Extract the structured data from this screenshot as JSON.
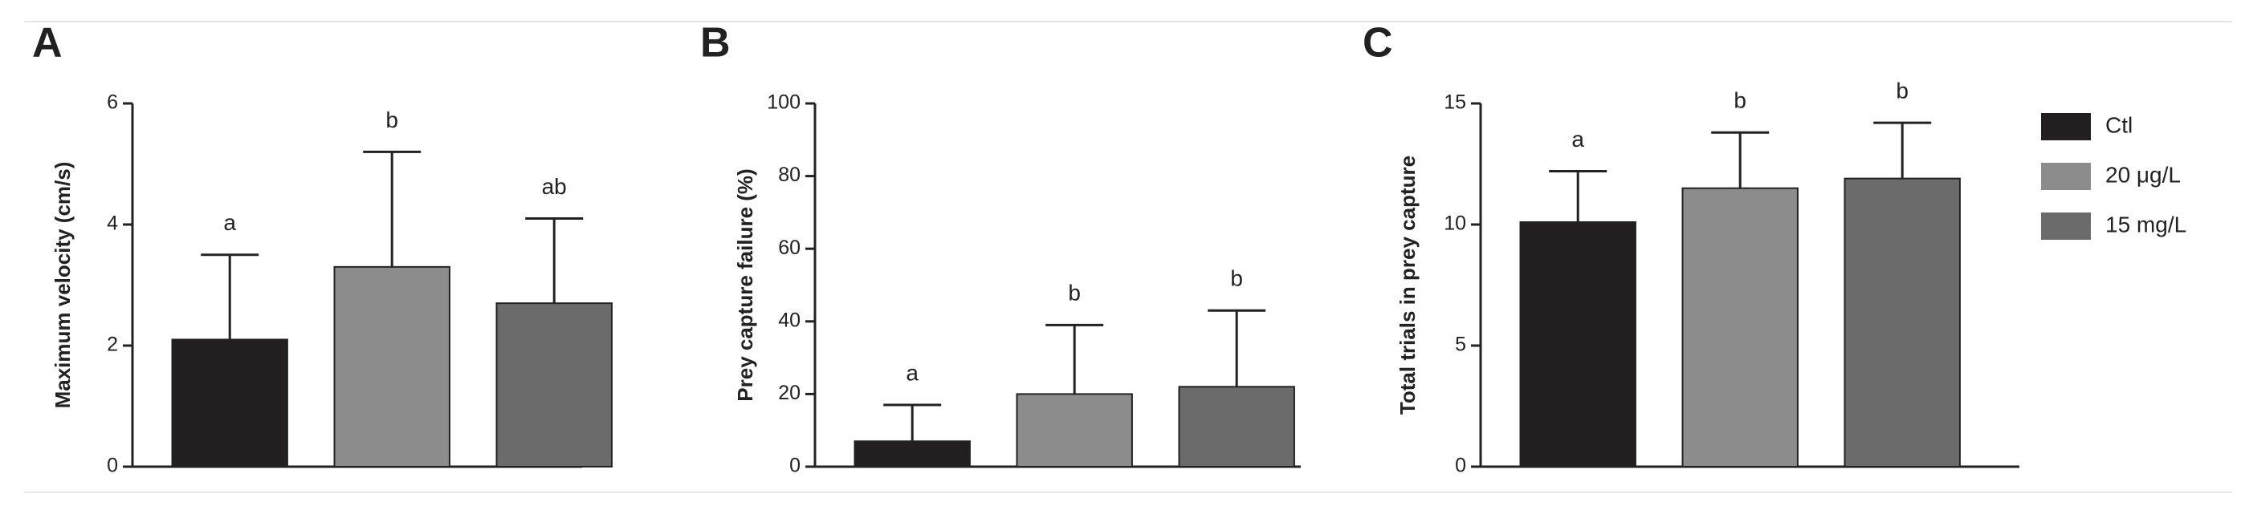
{
  "chart_data": [
    {
      "type": "bar",
      "panel": "A",
      "ylabel": "Maximum velocity (cm/s)",
      "ylim": [
        0,
        6
      ],
      "yticks": [
        0,
        2,
        4,
        6
      ],
      "series": [
        {
          "color": "#231f20",
          "values": [
            2.1
          ],
          "errors": [
            1.4
          ],
          "annotations": [
            "a"
          ]
        },
        {
          "color": "#8c8c8c",
          "values": [
            3.3
          ],
          "errors": [
            1.9
          ],
          "annotations": [
            "b"
          ]
        },
        {
          "color": "#6b6b6b",
          "values": [
            2.7
          ],
          "errors": [
            1.4
          ],
          "annotations": [
            "ab"
          ]
        }
      ]
    },
    {
      "type": "bar",
      "panel": "B",
      "ylabel": "Prey capture failure (%)",
      "ylim": [
        0,
        100
      ],
      "yticks": [
        0,
        20,
        40,
        60,
        80,
        100
      ],
      "series": [
        {
          "color": "#231f20",
          "values": [
            7
          ],
          "errors": [
            10
          ],
          "annotations": [
            "a"
          ]
        },
        {
          "color": "#8c8c8c",
          "values": [
            20
          ],
          "errors": [
            19
          ],
          "annotations": [
            "b"
          ]
        },
        {
          "color": "#6b6b6b",
          "values": [
            22
          ],
          "errors": [
            21
          ],
          "annotations": [
            "b"
          ]
        }
      ]
    },
    {
      "type": "bar",
      "panel": "C",
      "ylabel": "Total trials in prey capture",
      "ylim": [
        0,
        15
      ],
      "yticks": [
        0,
        5,
        10,
        15
      ],
      "series": [
        {
          "name": "Ctl",
          "color": "#231f20",
          "values": [
            10.1
          ],
          "errors": [
            2.1
          ],
          "annotations": [
            "a"
          ]
        },
        {
          "name": "20 μg/L",
          "color": "#8c8c8c",
          "values": [
            11.5
          ],
          "errors": [
            2.3
          ],
          "annotations": [
            "b"
          ]
        },
        {
          "name": "15 mg/L",
          "color": "#6b6b6b",
          "values": [
            11.9
          ],
          "errors": [
            2.3
          ],
          "annotations": [
            "b"
          ]
        }
      ]
    }
  ]
}
